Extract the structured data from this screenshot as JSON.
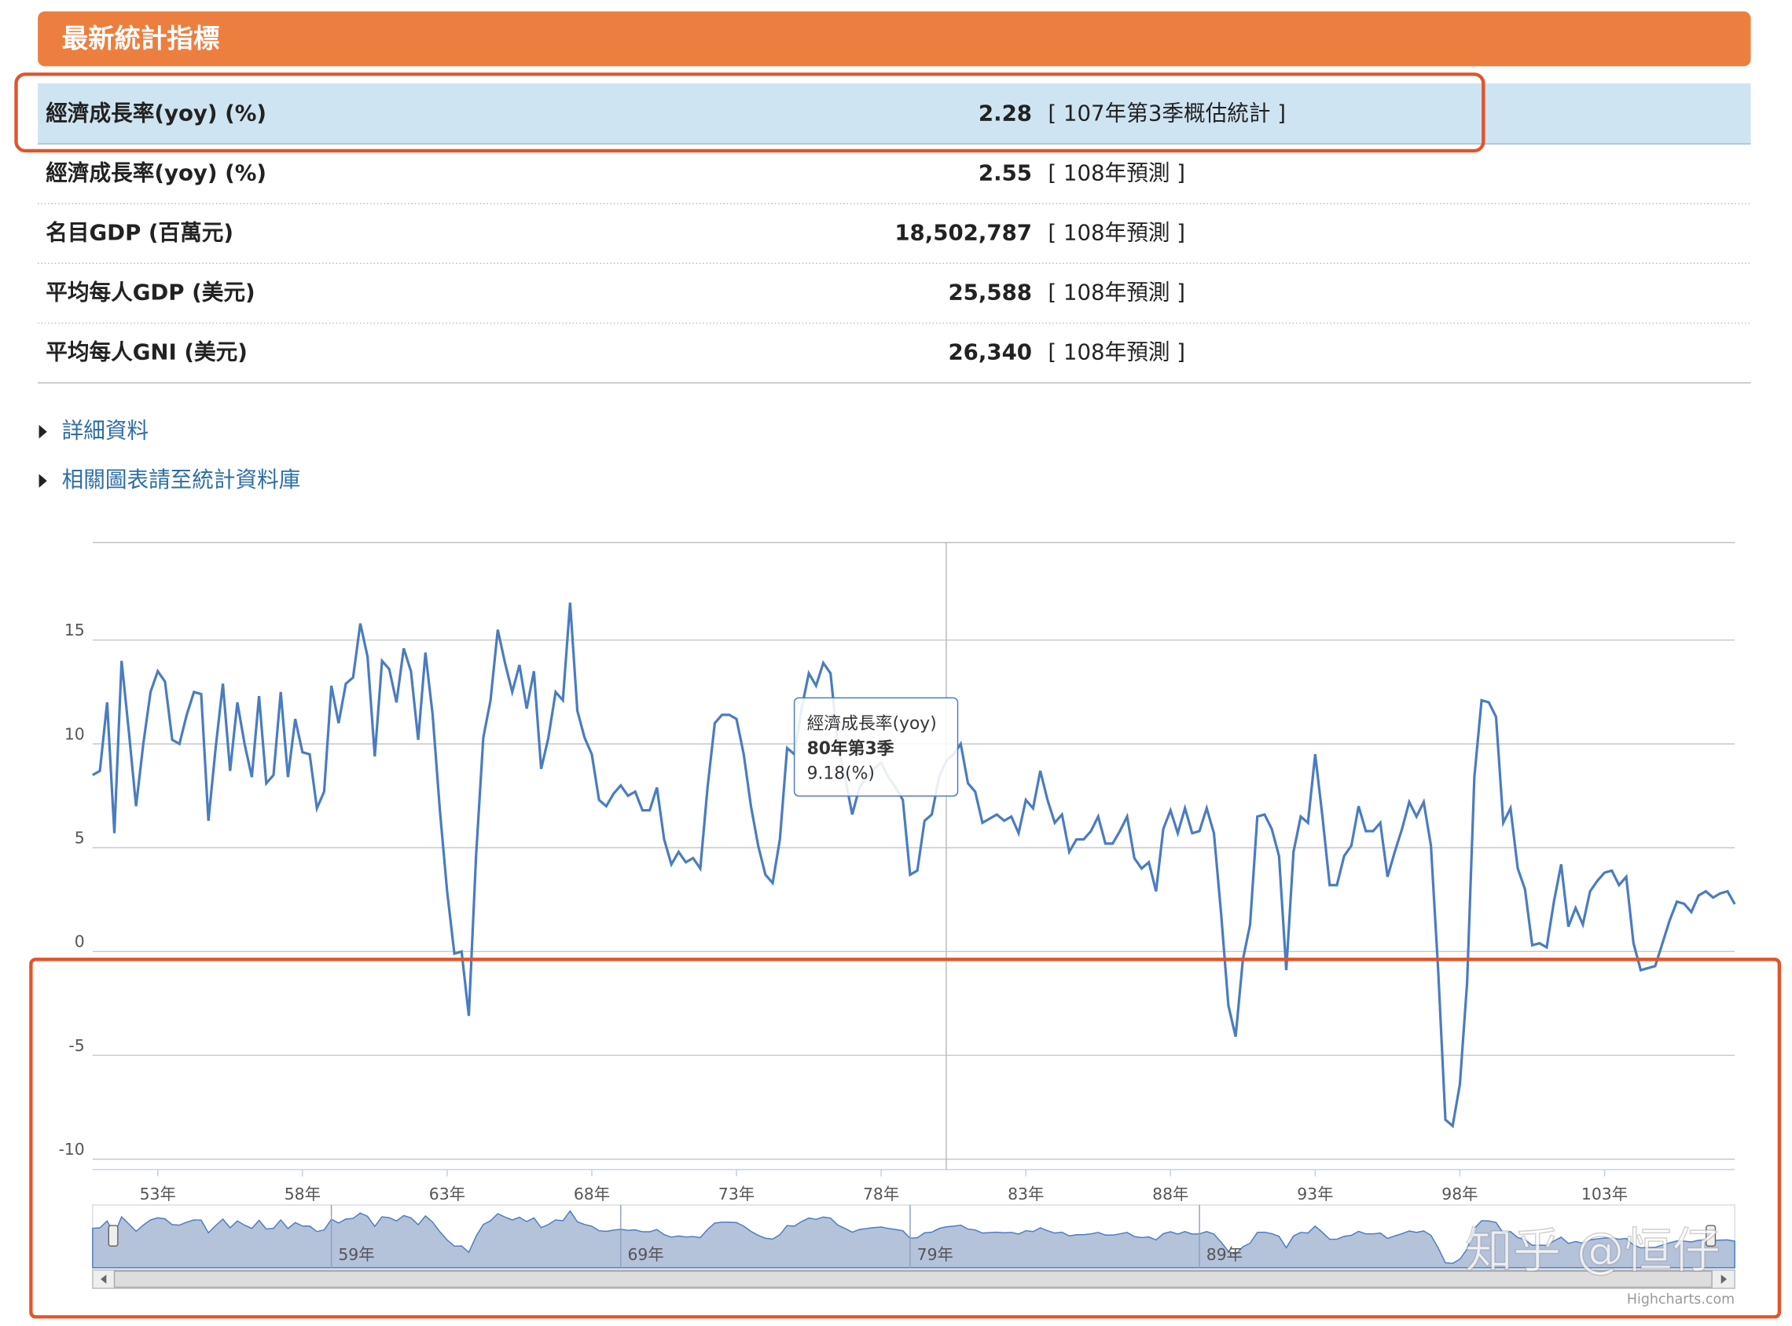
{
  "header": {
    "title": "最新統計指標"
  },
  "table": {
    "rows": [
      [
        "經濟成長率(yoy) (%)",
        "2.28",
        "[ 107年第3季概估統計 ]"
      ],
      [
        "經濟成長率(yoy) (%)",
        "2.55",
        "[ 108年預測 ]"
      ],
      [
        "名目GDP (百萬元)",
        "18,502,787",
        "[ 108年預測 ]"
      ],
      [
        "平均每人GDP (美元)",
        "25,588",
        "[ 108年預測 ]"
      ],
      [
        "平均每人GNI (美元)",
        "26,340",
        "[ 108年預測 ]"
      ]
    ]
  },
  "links": [
    "詳細資料",
    "相關圖表請至統計資料庫"
  ],
  "chart_data": {
    "type": "line",
    "x": [
      50.75,
      51,
      51.25,
      51.5,
      51.75,
      52,
      52.25,
      52.5,
      52.75,
      53,
      53.25,
      53.5,
      53.75,
      54,
      54.25,
      54.5,
      54.75,
      55,
      55.25,
      55.5,
      55.75,
      56,
      56.25,
      56.5,
      56.75,
      57,
      57.25,
      57.5,
      57.75,
      58,
      58.25,
      58.5,
      58.75,
      59,
      59.25,
      59.5,
      59.75,
      60,
      60.25,
      60.5,
      60.75,
      61,
      61.25,
      61.5,
      61.75,
      62,
      62.25,
      62.5,
      62.75,
      63,
      63.25,
      63.5,
      63.75,
      64,
      64.25,
      64.5,
      64.75,
      65,
      65.25,
      65.5,
      65.75,
      66,
      66.25,
      66.5,
      66.75,
      67,
      67.25,
      67.5,
      67.75,
      68,
      68.25,
      68.5,
      68.75,
      69,
      69.25,
      69.5,
      69.75,
      70,
      70.25,
      70.5,
      70.75,
      71,
      71.25,
      71.5,
      71.75,
      72,
      72.25,
      72.5,
      72.75,
      73,
      73.25,
      73.5,
      73.75,
      74,
      74.25,
      74.5,
      74.75,
      75,
      75.25,
      75.5,
      75.75,
      76,
      76.25,
      76.5,
      76.75,
      77,
      77.25,
      77.5,
      77.75,
      78,
      78.25,
      78.5,
      78.75,
      79,
      79.25,
      79.5,
      79.75,
      80,
      80.25,
      80.5,
      80.75,
      81,
      81.25,
      81.5,
      81.75,
      82,
      82.25,
      82.5,
      82.75,
      83,
      83.25,
      83.5,
      83.75,
      84,
      84.25,
      84.5,
      84.75,
      85,
      85.25,
      85.5,
      85.75,
      86,
      86.25,
      86.5,
      86.75,
      87,
      87.25,
      87.5,
      87.75,
      88,
      88.25,
      88.5,
      88.75,
      89,
      89.25,
      89.5,
      89.75,
      90,
      90.25,
      90.5,
      90.75,
      91,
      91.25,
      91.5,
      91.75,
      92,
      92.25,
      92.5,
      92.75,
      93,
      93.25,
      93.5,
      93.75,
      94,
      94.25,
      94.5,
      94.75,
      95,
      95.25,
      95.5,
      95.75,
      96,
      96.25,
      96.5,
      96.75,
      97,
      97.25,
      97.5,
      97.75,
      98,
      98.25,
      98.5,
      98.75,
      99,
      99.25,
      99.5,
      99.75,
      100,
      100.25,
      100.5,
      100.75,
      101,
      101.25,
      101.5,
      101.75,
      102,
      102.25,
      102.5,
      102.75,
      103,
      103.25,
      103.5,
      103.75,
      104,
      104.25,
      104.5,
      104.75,
      105,
      105.25,
      105.5,
      105.75,
      106,
      106.25,
      106.5,
      106.75,
      107,
      107.25,
      107.5
    ],
    "series": [
      {
        "name": "經濟成長率(yoy)",
        "color": "#4a7cc0",
        "values": [
          8.5,
          8.7,
          12,
          5.7,
          14,
          10.6,
          7,
          10,
          12.5,
          13.5,
          13,
          10.2,
          10,
          11.4,
          12.5,
          12.4,
          6.3,
          9.8,
          12.9,
          8.7,
          12,
          10,
          8.4,
          12.3,
          8.1,
          8.5,
          12.5,
          8.4,
          11.2,
          9.6,
          9.5,
          6.9,
          7.7,
          12.8,
          11,
          12.9,
          13.2,
          15.8,
          14.2,
          9.4,
          14,
          13.6,
          12,
          14.6,
          13.5,
          10.2,
          14.4,
          11.4,
          6.8,
          2.9,
          -0.1,
          0,
          -3.1,
          4.6,
          10.3,
          12.1,
          15.5,
          13.9,
          12.5,
          13.8,
          11.7,
          13.5,
          8.8,
          10.3,
          12.5,
          12.1,
          16.8,
          11.6,
          10.3,
          9.5,
          7.3,
          7,
          7.6,
          8,
          7.5,
          7.7,
          6.8,
          6.8,
          7.9,
          5.4,
          4.2,
          4.8,
          4.3,
          4.5,
          4,
          7.9,
          11,
          11.4,
          11.4,
          11.2,
          9.5,
          7,
          5.1,
          3.7,
          3.3,
          5.4,
          9.8,
          9.5,
          11.7,
          13.4,
          12.8,
          13.9,
          13.4,
          10,
          8.4,
          6.6,
          7.9,
          8.4,
          8.8,
          9.1,
          8.4,
          7.9,
          7.3,
          3.7,
          3.9,
          6.3,
          6.6,
          8.4,
          9.18,
          9.5,
          10,
          8.1,
          7.7,
          6.2,
          6.4,
          6.6,
          6.3,
          6.5,
          5.7,
          7.3,
          6.9,
          8.7,
          7.3,
          6.2,
          6.6,
          4.8,
          5.4,
          5.4,
          5.8,
          6.5,
          5.2,
          5.2,
          5.8,
          6.5,
          4.5,
          4,
          4.3,
          2.9,
          5.9,
          6.8,
          5.7,
          6.9,
          5.7,
          5.8,
          6.9,
          5.7,
          1.8,
          -2.6,
          -4.1,
          -0.4,
          1.3,
          6.5,
          6.6,
          5.9,
          4.6,
          -0.9,
          4.8,
          6.5,
          6.2,
          9.5,
          6.5,
          3.2,
          3.2,
          4.6,
          5.1,
          7,
          5.8,
          5.8,
          6.2,
          3.6,
          4.8,
          5.9,
          7.2,
          6.5,
          7.2,
          5.1,
          -0.9,
          -8.1,
          -8.4,
          -6.4,
          -1.5,
          8.4,
          12.1,
          12,
          11.3,
          6.2,
          6.9,
          4,
          3,
          0.3,
          0.4,
          0.2,
          2.4,
          4.2,
          1.2,
          2.1,
          1.3,
          2.9,
          3.4,
          3.8,
          3.9,
          3.2,
          3.6,
          0.4,
          -0.9,
          -0.8,
          -0.7,
          0.4,
          1.5,
          2.4,
          2.3,
          1.9,
          2.7,
          2.9,
          2.6,
          2.8,
          2.9,
          2.28
        ]
      }
    ],
    "xlim": [
      50.75,
      107.5
    ],
    "ylim": [
      -10.5,
      19.7
    ],
    "yticks": [
      -10,
      -5,
      0,
      5,
      10,
      15
    ],
    "xticks": [
      {
        "value": 53,
        "label": "53年"
      },
      {
        "value": 58,
        "label": "58年"
      },
      {
        "value": 63,
        "label": "63年"
      },
      {
        "value": 68,
        "label": "68年"
      },
      {
        "value": 73,
        "label": "73年"
      },
      {
        "value": 78,
        "label": "78年"
      },
      {
        "value": 83,
        "label": "83年"
      },
      {
        "value": 88,
        "label": "88年"
      },
      {
        "value": 93,
        "label": "93年"
      },
      {
        "value": 98,
        "label": "98年"
      },
      {
        "value": 103,
        "label": "103年"
      }
    ],
    "navigator_ticks": [
      {
        "value": 59,
        "label": "59年"
      },
      {
        "value": 69,
        "label": "69年"
      },
      {
        "value": 79,
        "label": "79年"
      },
      {
        "value": 89,
        "label": "89年"
      }
    ],
    "grid": true,
    "tooltip": {
      "x": 80.25,
      "title": "80年第3季",
      "text": "9.18(%)"
    },
    "credit": "Highcharts.com",
    "watermark": "知乎 @恒仔"
  }
}
